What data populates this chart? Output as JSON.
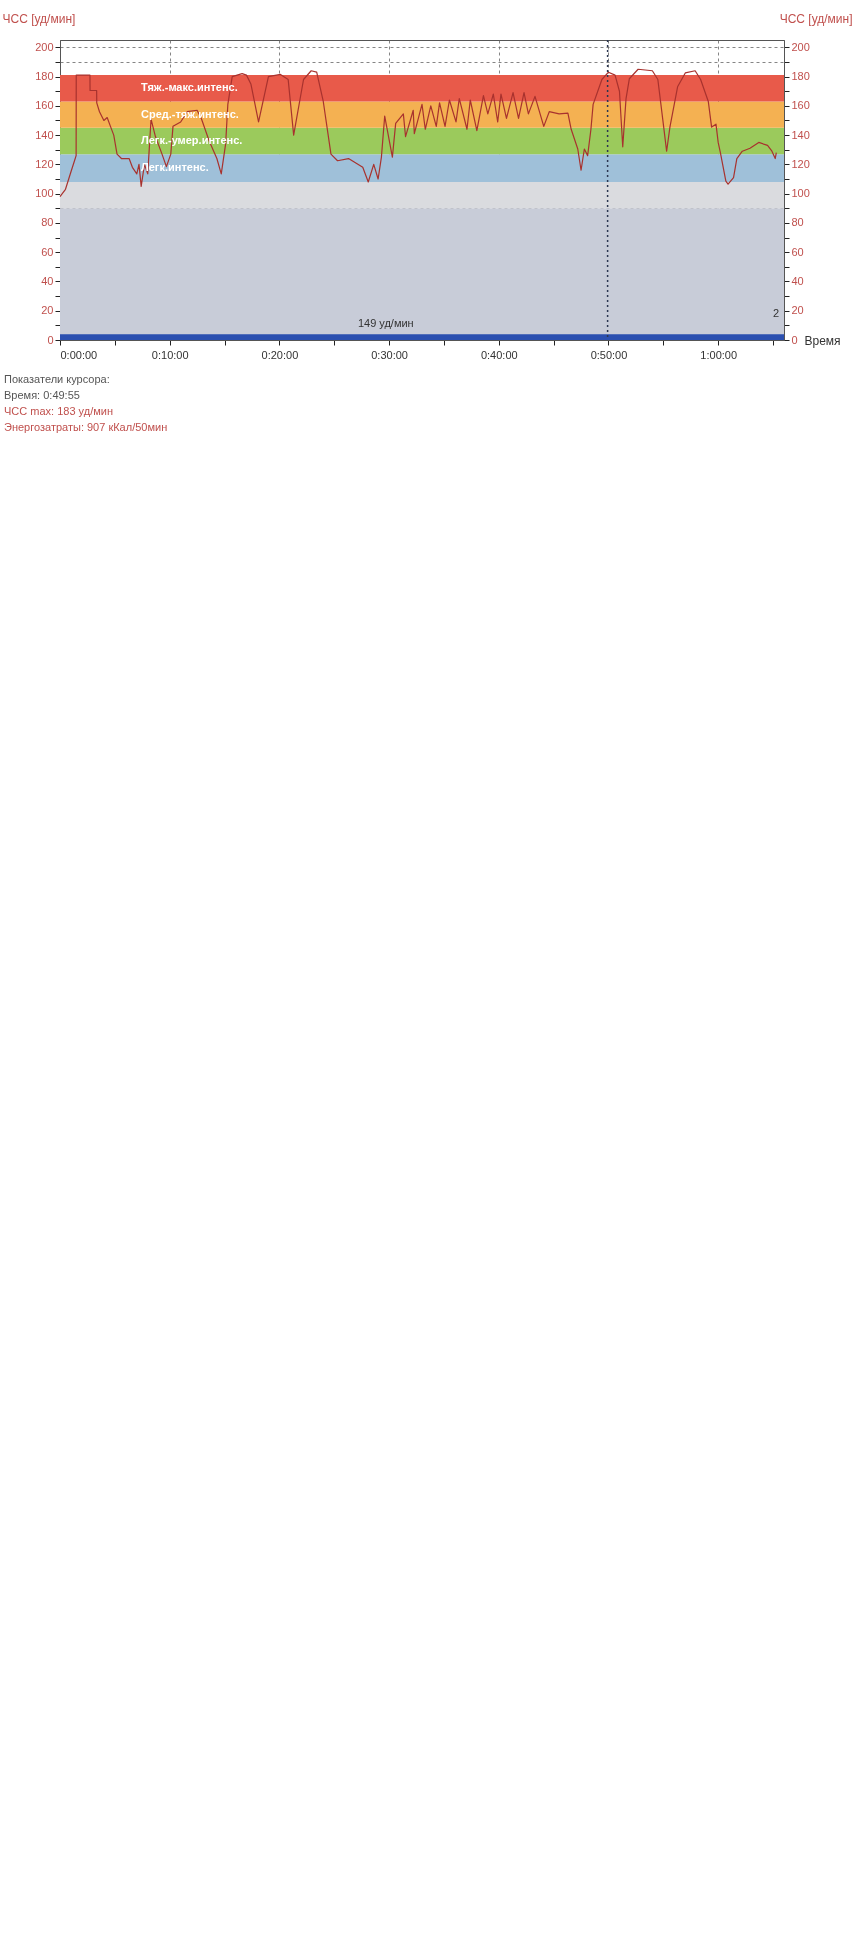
{
  "chart_data": {
    "type": "line",
    "xlabel": "Время",
    "ylabel": "ЧСС [уд/мин]",
    "y2label": "ЧСС [уд/мин]",
    "xlim": [
      0,
      66
    ],
    "xticks": [
      {
        "value": 0,
        "label": "0:00:00"
      },
      {
        "value": 5,
        "label": null
      },
      {
        "value": 10,
        "label": "0:10:00"
      },
      {
        "value": 15,
        "label": null
      },
      {
        "value": 20,
        "label": "0:20:00"
      },
      {
        "value": 25,
        "label": null
      },
      {
        "value": 30,
        "label": "0:30:00"
      },
      {
        "value": 35,
        "label": null
      },
      {
        "value": 40,
        "label": "0:40:00"
      },
      {
        "value": 45,
        "label": null
      },
      {
        "value": 50,
        "label": "0:50:00"
      },
      {
        "value": 55,
        "label": null
      },
      {
        "value": 60,
        "label": "1:00:00"
      },
      {
        "value": 65,
        "label": null
      }
    ],
    "ylim": [
      0,
      205
    ],
    "yticks": [
      0,
      {
        "value": 10,
        "label": null
      },
      20,
      {
        "value": 30,
        "label": null
      },
      40,
      {
        "value": 50,
        "label": null
      },
      60,
      {
        "value": 70,
        "label": null
      },
      80,
      {
        "value": 90,
        "label": null
      },
      100,
      {
        "value": 110,
        "label": null
      },
      120,
      {
        "value": 130,
        "label": null
      },
      140,
      {
        "value": 150,
        "label": null
      },
      160,
      {
        "value": 170,
        "label": null
      },
      180,
      {
        "value": 190,
        "label": null
      },
      200
    ],
    "y2lim": [
      0,
      205
    ],
    "y2ticks": [
      0,
      {
        "value": 10,
        "label": null
      },
      20,
      {
        "value": 30,
        "label": null
      },
      40,
      {
        "value": 50,
        "label": null
      },
      60,
      {
        "value": 70,
        "label": null
      },
      80,
      {
        "value": 90,
        "label": null
      },
      100,
      {
        "value": 110,
        "label": null
      },
      120,
      {
        "value": 130,
        "label": null
      },
      140,
      {
        "value": 150,
        "label": null
      },
      160,
      {
        "value": 170,
        "label": null
      },
      180,
      {
        "value": 190,
        "label": null
      },
      200
    ],
    "grid": true,
    "x": [
      0,
      0.5,
      1.0,
      1.3,
      1.47,
      1.48,
      2.73,
      2.74,
      3.34,
      3.35,
      3.6,
      4.0,
      4.3,
      4.6,
      4.9,
      5.2,
      5.6,
      6.3,
      6.6,
      7.0,
      7.2,
      7.4,
      7.7,
      8.0,
      8.3,
      8.7,
      9.3,
      9.7,
      10.1,
      10.3,
      11.0,
      11.6,
      12.5,
      12.9,
      13.6,
      14.3,
      14.7,
      15.1,
      15.3,
      15.7,
      16.6,
      17.0,
      17.4,
      18.1,
      19.0,
      20.1,
      20.8,
      21.3,
      22.2,
      22.9,
      23.4,
      24.0,
      24.7,
      25.3,
      26.3,
      27.6,
      28.1,
      28.6,
      29.0,
      29.3,
      29.6,
      30.3,
      30.6,
      31.3,
      31.5,
      32.2,
      32.3,
      33.0,
      33.3,
      33.8,
      34.3,
      34.6,
      35.1,
      35.5,
      36.1,
      36.4,
      37.1,
      37.4,
      38.0,
      38.6,
      39.0,
      39.5,
      39.9,
      40.2,
      40.7,
      41.3,
      41.8,
      42.3,
      42.7,
      43.3,
      44.1,
      44.6,
      45.5,
      46.3,
      46.6,
      47.2,
      47.5,
      47.8,
      48.1,
      48.4,
      48.6,
      49.4,
      50.0,
      50.6,
      51.0,
      51.3,
      51.6,
      51.9,
      52.7,
      54.0,
      54.5,
      55.0,
      55.3,
      55.6,
      56.3,
      57.0,
      57.9,
      58.4,
      59.1,
      59.4,
      59.8,
      60.0,
      60.2,
      60.7,
      60.9,
      61.4,
      61.7,
      62.2,
      62.9,
      63.7,
      64.5,
      64.9,
      65.2,
      65.3
    ],
    "series": [
      {
        "color": "#a8322e",
        "values": [
          98,
          103,
          115,
          122,
          126,
          181,
          181,
          170.5,
          170.5,
          162,
          156,
          150,
          152,
          146,
          140,
          127,
          124,
          124,
          118,
          113.5,
          120,
          105,
          120,
          113.5,
          151,
          139,
          127,
          118.5,
          127,
          146,
          149,
          156,
          157,
          151,
          136,
          124,
          113.5,
          134,
          161,
          180,
          182,
          181,
          175,
          149,
          180,
          181.5,
          178,
          140,
          178,
          184,
          183,
          163,
          127,
          122.5,
          124,
          118,
          108,
          120,
          110,
          125,
          153,
          125,
          148,
          154.5,
          139,
          157,
          141,
          161,
          144,
          160,
          146,
          162,
          146,
          164,
          149,
          165,
          144,
          164,
          143,
          167,
          154.5,
          168,
          149,
          168,
          151.5,
          169,
          151.5,
          169,
          154.5,
          166.5,
          146,
          156,
          154.5,
          155,
          144,
          130.5,
          116,
          130.5,
          126,
          144,
          161,
          178,
          183,
          181,
          170,
          132,
          165,
          178.5,
          185,
          184,
          178,
          147.5,
          129,
          145.5,
          173,
          182.5,
          184,
          178,
          163,
          145.5,
          147.5,
          135,
          128,
          108.6,
          106.5,
          111,
          124,
          129,
          131,
          135,
          133,
          129,
          124,
          128
        ]
      }
    ],
    "bands": [
      {
        "axis": "y",
        "from": 0,
        "to": 90,
        "color": "#c8ccd8"
      },
      {
        "axis": "y",
        "from": 90,
        "to": 108,
        "color": "#dadbdf"
      },
      {
        "axis": "y",
        "from": 108,
        "to": 127,
        "label": "Легк.интенс.",
        "color": "#9fc0d9"
      },
      {
        "axis": "y",
        "from": 127,
        "to": 145,
        "label": "Легк.-умер.интенс.",
        "color": "#9bca5c"
      },
      {
        "axis": "y",
        "from": 145,
        "to": 163,
        "label": "Сред.-тяж.интенс.",
        "color": "#f4b152"
      },
      {
        "axis": "y",
        "from": 163,
        "to": 181,
        "label": "Тяж.-макс.интенс.",
        "color": "#e85a4a"
      },
      {
        "axis": "y",
        "from": 0,
        "to": 4,
        "color": "#2a4fb0"
      }
    ],
    "ref_lines": [
      {
        "axis": "x",
        "value": 49.92,
        "color": "#2a3550",
        "line_style": "dotted"
      }
    ],
    "annotations": [
      "Показатели курсора:",
      "Время: 0:49:55",
      "ЧСС max: 183 уд/мин",
      "Энергозатраты: 907 кКал/50мин",
      "149 уд/мин",
      "2"
    ]
  }
}
